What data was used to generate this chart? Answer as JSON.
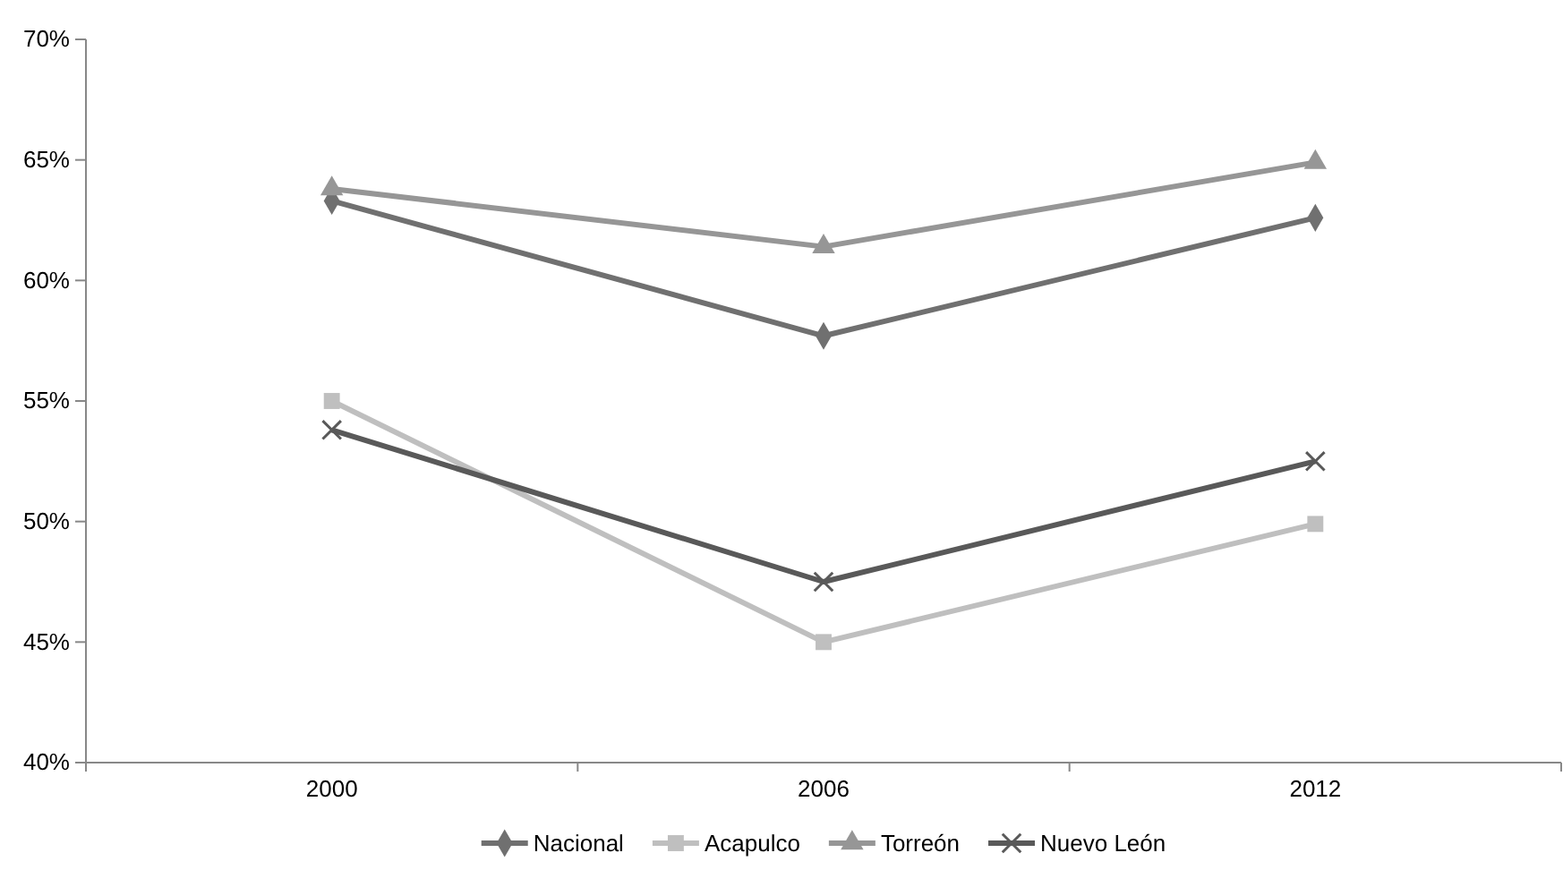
{
  "chart_data": {
    "type": "line",
    "categories": [
      "2000",
      "2006",
      "2012"
    ],
    "series": [
      {
        "name": "Nacional",
        "color": "#707070",
        "marker": "diamond",
        "values": [
          63.3,
          57.7,
          62.6
        ]
      },
      {
        "name": "Acapulco",
        "color": "#bfbfbf",
        "marker": "square",
        "values": [
          55.0,
          45.0,
          49.9
        ]
      },
      {
        "name": "Torreón",
        "color": "#969696",
        "marker": "triangle",
        "values": [
          63.8,
          61.4,
          64.9
        ]
      },
      {
        "name": "Nuevo León",
        "color": "#595959",
        "marker": "cross",
        "values": [
          53.8,
          47.5,
          52.5
        ]
      }
    ],
    "ylim": [
      40,
      70
    ],
    "yticks": [
      {
        "value": 40,
        "label": "40%"
      },
      {
        "value": 45,
        "label": "45%"
      },
      {
        "value": 50,
        "label": "50%"
      },
      {
        "value": 55,
        "label": "55%"
      },
      {
        "value": 60,
        "label": "60%"
      },
      {
        "value": 65,
        "label": "65%"
      },
      {
        "value": 70,
        "label": "70%"
      }
    ],
    "grid": false,
    "legend": "bottom",
    "line_style": "solid"
  }
}
